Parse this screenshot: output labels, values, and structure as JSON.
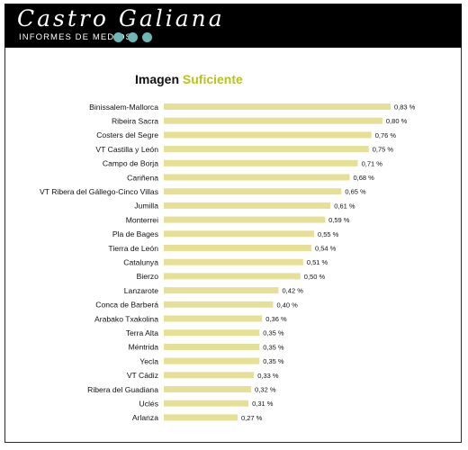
{
  "header": {
    "brand": "Castro Galiana",
    "tagline": "INFORMES DE MEDIOS"
  },
  "colors": {
    "header_bg": "#000000",
    "dot": "#6db7b5",
    "bar": "#e5e095",
    "title_accent": "#b9c21a"
  },
  "chart_data": {
    "type": "bar",
    "orientation": "horizontal",
    "title_part1": "Imagen",
    "title_part2": "Suficiente",
    "categories": [
      "Binissalem-Mallorca",
      "Ribeira Sacra",
      "Costers del Segre",
      "VT Castilla y León",
      "Campo de Borja",
      "Cariñena",
      "VT Ribera del Gállego-Cinco Villas",
      "Jumilla",
      "Monterrei",
      "Pla de Bages",
      "Tierra de León",
      "Catalunya",
      "Bierzo",
      "Lanzarote",
      "Conca de Barberá",
      "Arabako Txakolina",
      "Terra Alta",
      "Méntrida",
      "Yecla",
      "VT Cádiz",
      "Ribera del Guadiana",
      "Uclés",
      "Arlanza"
    ],
    "values": [
      0.83,
      0.8,
      0.76,
      0.75,
      0.71,
      0.68,
      0.65,
      0.61,
      0.59,
      0.55,
      0.54,
      0.51,
      0.5,
      0.42,
      0.4,
      0.36,
      0.35,
      0.35,
      0.35,
      0.33,
      0.32,
      0.31,
      0.27
    ],
    "value_labels": [
      "0,83 %",
      "0,80 %",
      "0,76 %",
      "0,75 %",
      "0,71 %",
      "0,68 %",
      "0,65 %",
      "0,61 %",
      "0,59 %",
      "0,55 %",
      "0,54 %",
      "0,51 %",
      "0,50 %",
      "0,42 %",
      "0,40 %",
      "0,36 %",
      "0,35 %",
      "0,35 %",
      "0,35 %",
      "0,33 %",
      "0,32 %",
      "0,31 %",
      "0,27 %"
    ],
    "xlim": [
      0,
      0.83
    ],
    "grid": false,
    "legend": "none"
  }
}
